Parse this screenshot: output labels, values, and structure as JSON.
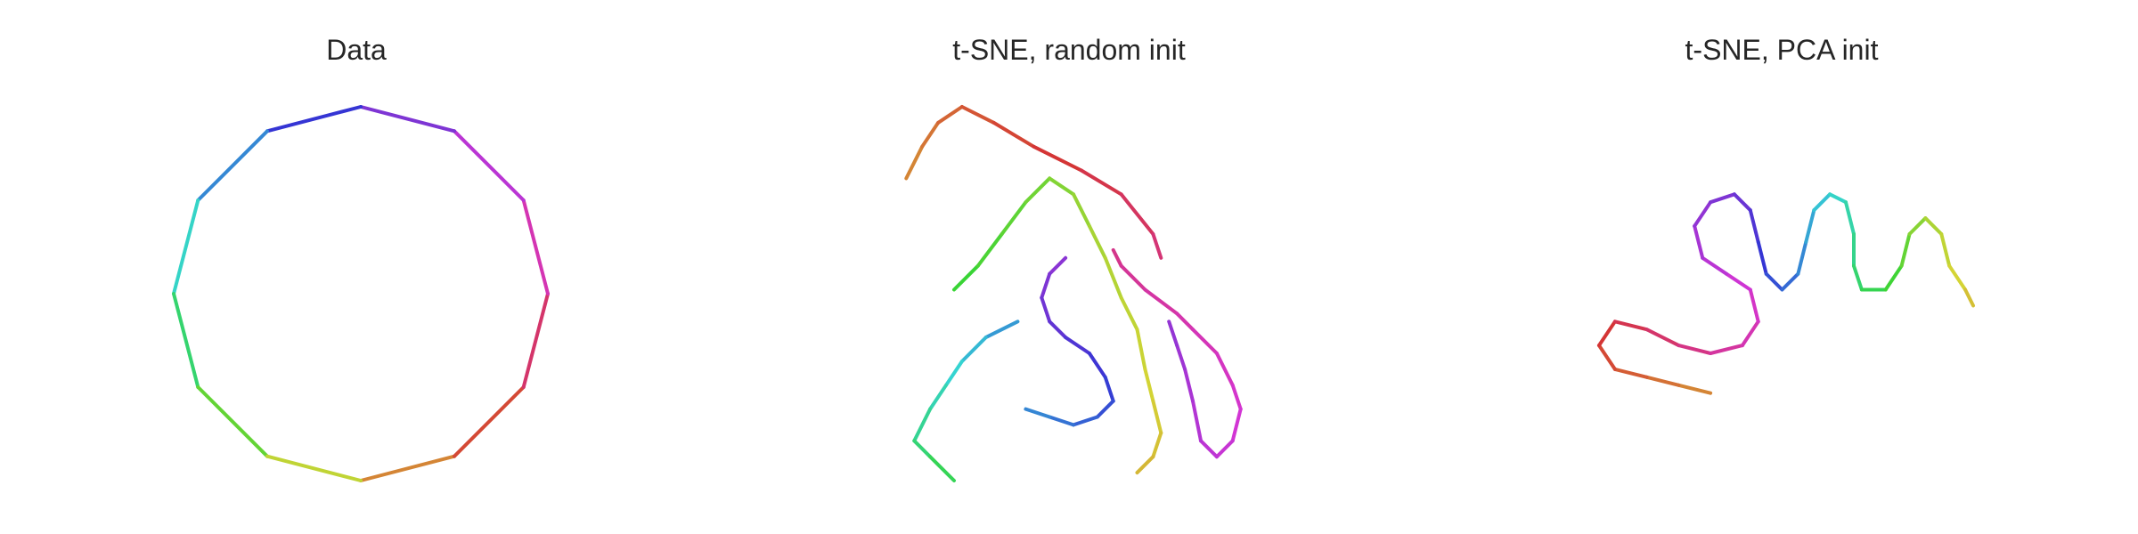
{
  "chart_data": [
    {
      "type": "line",
      "title": "Data",
      "xlabel": "",
      "ylabel": "",
      "grid": false,
      "axes_visible": false,
      "colormap": "hue gradient along curve (orange → red → pink → magenta → purple → blue → teal → green → olive → orange)",
      "series": [
        {
          "closed": true,
          "points": [
            [
              0,
              0
            ],
            [
              0.5,
              0.13
            ],
            [
              0.87,
              0.5
            ],
            [
              1,
              1
            ],
            [
              0.87,
              1.5
            ],
            [
              0.5,
              1.87
            ],
            [
              0,
              2
            ],
            [
              -0.5,
              1.87
            ],
            [
              -0.87,
              1.5
            ],
            [
              -1,
              1
            ],
            [
              -0.87,
              0.5
            ],
            [
              -0.5,
              0.13
            ],
            [
              0,
              0
            ]
          ]
        }
      ]
    },
    {
      "type": "line",
      "title": "t-SNE, random init",
      "xlabel": "",
      "ylabel": "",
      "grid": false,
      "axes_visible": false,
      "colormap": "hue gradient along curve",
      "series": [
        {
          "points": [
            [
              -1.1,
              1.1
            ],
            [
              -1.0,
              1.3
            ],
            [
              -0.9,
              1.45
            ],
            [
              -0.75,
              1.55
            ],
            [
              -0.55,
              1.45
            ],
            [
              -0.3,
              1.3
            ],
            [
              0.0,
              1.15
            ],
            [
              0.25,
              1.0
            ],
            [
              0.45,
              0.75
            ],
            [
              0.5,
              0.6
            ]
          ]
        },
        {
          "points": [
            [
              0.2,
              0.65
            ],
            [
              0.25,
              0.55
            ],
            [
              0.4,
              0.4
            ],
            [
              0.6,
              0.25
            ],
            [
              0.7,
              0.15
            ],
            [
              0.85,
              0.0
            ],
            [
              0.95,
              -0.2
            ],
            [
              1.0,
              -0.35
            ],
            [
              0.95,
              -0.55
            ],
            [
              0.85,
              -0.65
            ],
            [
              0.75,
              -0.55
            ],
            [
              0.7,
              -0.3
            ],
            [
              0.65,
              -0.1
            ],
            [
              0.6,
              0.05
            ],
            [
              0.55,
              0.2
            ]
          ]
        },
        {
          "points": [
            [
              -0.1,
              0.6
            ],
            [
              -0.2,
              0.5
            ],
            [
              -0.25,
              0.35
            ],
            [
              -0.2,
              0.2
            ],
            [
              -0.1,
              0.1
            ],
            [
              0.05,
              0.0
            ],
            [
              0.15,
              -0.15
            ],
            [
              0.2,
              -0.3
            ],
            [
              0.1,
              -0.4
            ],
            [
              -0.05,
              -0.45
            ],
            [
              -0.2,
              -0.4
            ],
            [
              -0.35,
              -0.35
            ]
          ]
        },
        {
          "points": [
            [
              -0.4,
              0.2
            ],
            [
              -0.6,
              0.1
            ],
            [
              -0.75,
              -0.05
            ],
            [
              -0.85,
              -0.2
            ],
            [
              -0.95,
              -0.35
            ],
            [
              -1.05,
              -0.55
            ],
            [
              -0.95,
              -0.65
            ],
            [
              -0.8,
              -0.8
            ]
          ]
        },
        {
          "points": [
            [
              -0.8,
              0.4
            ],
            [
              -0.65,
              0.55
            ],
            [
              -0.5,
              0.75
            ],
            [
              -0.35,
              0.95
            ],
            [
              -0.2,
              1.1
            ],
            [
              -0.05,
              1.0
            ],
            [
              0.05,
              0.8
            ],
            [
              0.15,
              0.6
            ],
            [
              0.25,
              0.35
            ],
            [
              0.35,
              0.15
            ],
            [
              0.4,
              -0.1
            ],
            [
              0.45,
              -0.3
            ],
            [
              0.5,
              -0.5
            ],
            [
              0.45,
              -0.65
            ],
            [
              0.35,
              -0.75
            ]
          ]
        }
      ]
    },
    {
      "type": "line",
      "title": "t-SNE, PCA init",
      "xlabel": "",
      "ylabel": "",
      "grid": false,
      "axes_visible": false,
      "colormap": "hue gradient along curve",
      "series": [
        {
          "points": [
            [
              -0.1,
              0.3
            ],
            [
              -0.3,
              0.35
            ],
            [
              -0.5,
              0.4
            ],
            [
              -0.7,
              0.45
            ],
            [
              -0.8,
              0.6
            ],
            [
              -0.7,
              0.75
            ],
            [
              -0.5,
              0.7
            ],
            [
              -0.3,
              0.6
            ],
            [
              -0.1,
              0.55
            ],
            [
              0.1,
              0.6
            ],
            [
              0.2,
              0.75
            ],
            [
              0.15,
              0.95
            ],
            [
              0.0,
              1.05
            ],
            [
              -0.15,
              1.15
            ],
            [
              -0.2,
              1.35
            ],
            [
              -0.1,
              1.5
            ],
            [
              0.05,
              1.55
            ],
            [
              0.15,
              1.45
            ],
            [
              0.2,
              1.25
            ],
            [
              0.25,
              1.05
            ],
            [
              0.35,
              0.95
            ],
            [
              0.45,
              1.05
            ],
            [
              0.5,
              1.25
            ],
            [
              0.55,
              1.45
            ],
            [
              0.65,
              1.55
            ],
            [
              0.75,
              1.5
            ],
            [
              0.8,
              1.3
            ],
            [
              0.8,
              1.1
            ],
            [
              0.85,
              0.95
            ],
            [
              1.0,
              0.95
            ],
            [
              1.1,
              1.1
            ],
            [
              1.15,
              1.3
            ],
            [
              1.25,
              1.4
            ],
            [
              1.35,
              1.3
            ],
            [
              1.4,
              1.1
            ],
            [
              1.5,
              0.95
            ],
            [
              1.55,
              0.85
            ]
          ]
        }
      ]
    }
  ]
}
